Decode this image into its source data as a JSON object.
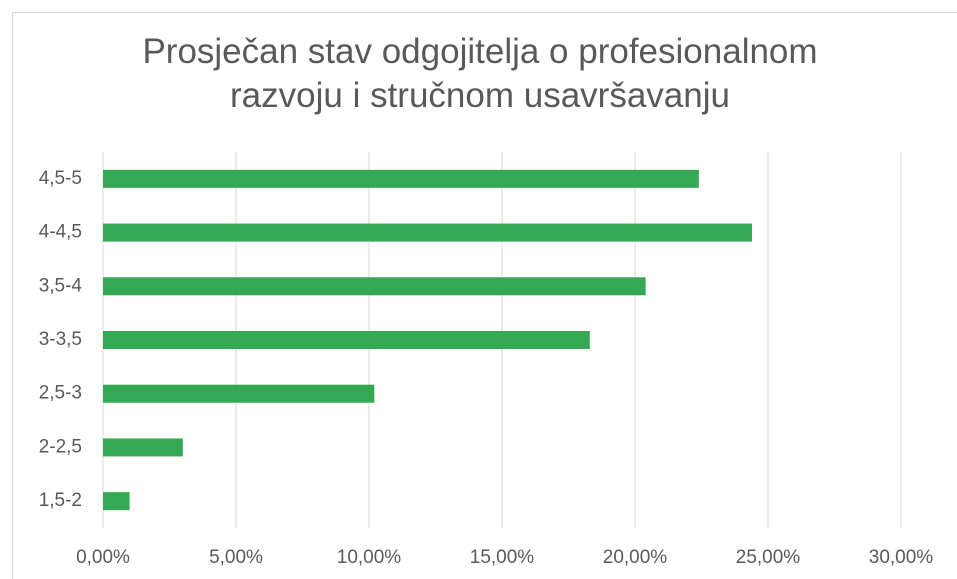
{
  "chart_data": {
    "type": "bar",
    "orientation": "horizontal",
    "title": "Prosječan stav odgojitelja o profesionalnom razvoju i stručnom usavršavanju",
    "categories": [
      "1,5-2",
      "2-2,5",
      "2,5-3",
      "3-3,5",
      "3,5-4",
      "4-4,5",
      "4,5-5"
    ],
    "values": [
      1.0,
      3.0,
      10.2,
      18.3,
      20.4,
      24.4,
      22.4
    ],
    "color": "#34a853",
    "xlim": [
      0,
      30
    ],
    "xticks": [
      {
        "value": 0,
        "label": "0,00%"
      },
      {
        "value": 5,
        "label": "5,00%"
      },
      {
        "value": 10,
        "label": "10,00%"
      },
      {
        "value": 15,
        "label": "15,00%"
      },
      {
        "value": 20,
        "label": "20,00%"
      },
      {
        "value": 25,
        "label": "25,00%"
      },
      {
        "value": 30,
        "label": "30,00%"
      }
    ],
    "grid": true
  }
}
